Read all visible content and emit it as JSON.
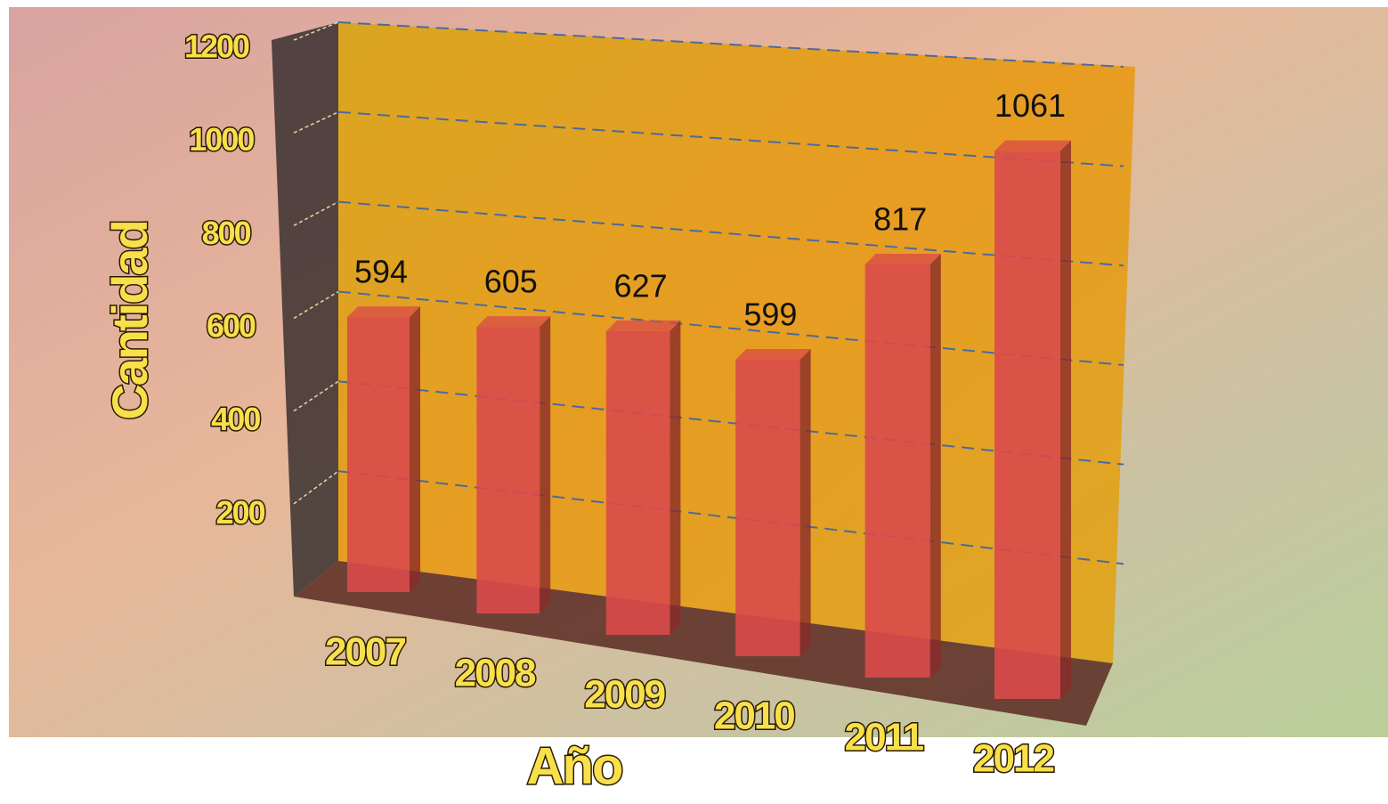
{
  "chart_data": {
    "type": "bar3d",
    "x_label": "Año",
    "y_label": "Cantidad",
    "categories": [
      "2007",
      "2008",
      "2009",
      "2010",
      "2011",
      "2012"
    ],
    "values": [
      594,
      605,
      627,
      599,
      817,
      1061
    ],
    "color": "#d94a4a",
    "ylim": [
      0,
      1200
    ],
    "yticks": [
      200,
      400,
      600,
      800,
      1000,
      1200
    ],
    "grid": true
  }
}
